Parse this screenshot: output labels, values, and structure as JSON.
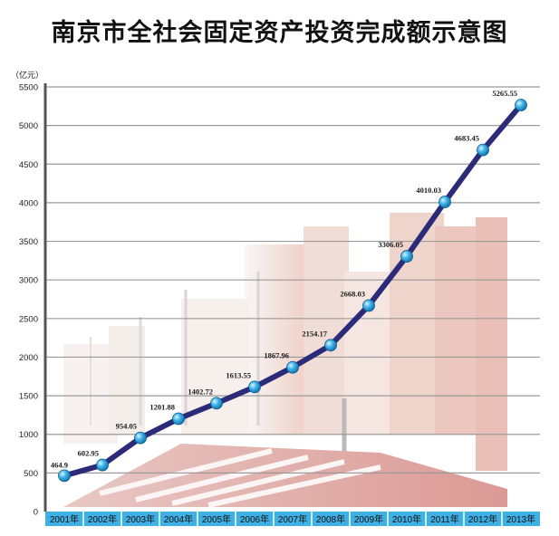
{
  "title": "南京市全社会固定资产投资完成额示意图",
  "chart_data": {
    "type": "line",
    "title": "南京市全社会固定资产投资完成额示意图",
    "unit_label": "（亿元）",
    "categories": [
      "2001年",
      "2002年",
      "2003年",
      "2004年",
      "2005年",
      "2006年",
      "2007年",
      "2008年",
      "2009年",
      "2010年",
      "2011年",
      "2012年",
      "2013年"
    ],
    "values": [
      464.9,
      602.95,
      954.05,
      1201.88,
      1402.72,
      1613.55,
      1867.96,
      2154.17,
      2668.03,
      3306.05,
      4010.03,
      4683.45,
      5265.55
    ],
    "labels": [
      "464.9",
      "602.95",
      "954.05",
      "1201.88",
      "1402.72",
      "1613.55",
      "1867.96",
      "2154.17",
      "2668.03",
      "3306.05",
      "4010.03",
      "4683.45",
      "5265.55"
    ],
    "yticks": [
      "0",
      "500",
      "1000",
      "1500",
      "2000",
      "2500",
      "3000",
      "3500",
      "4000",
      "4500",
      "5000",
      "5500"
    ],
    "ylim": [
      0,
      5500
    ],
    "grid": true,
    "colors": {
      "line": "#2b2b7a",
      "marker": "#2a9fd6",
      "grid": "#9a9a9a",
      "xband": "#3fb0e3",
      "axis": "#555555"
    }
  }
}
